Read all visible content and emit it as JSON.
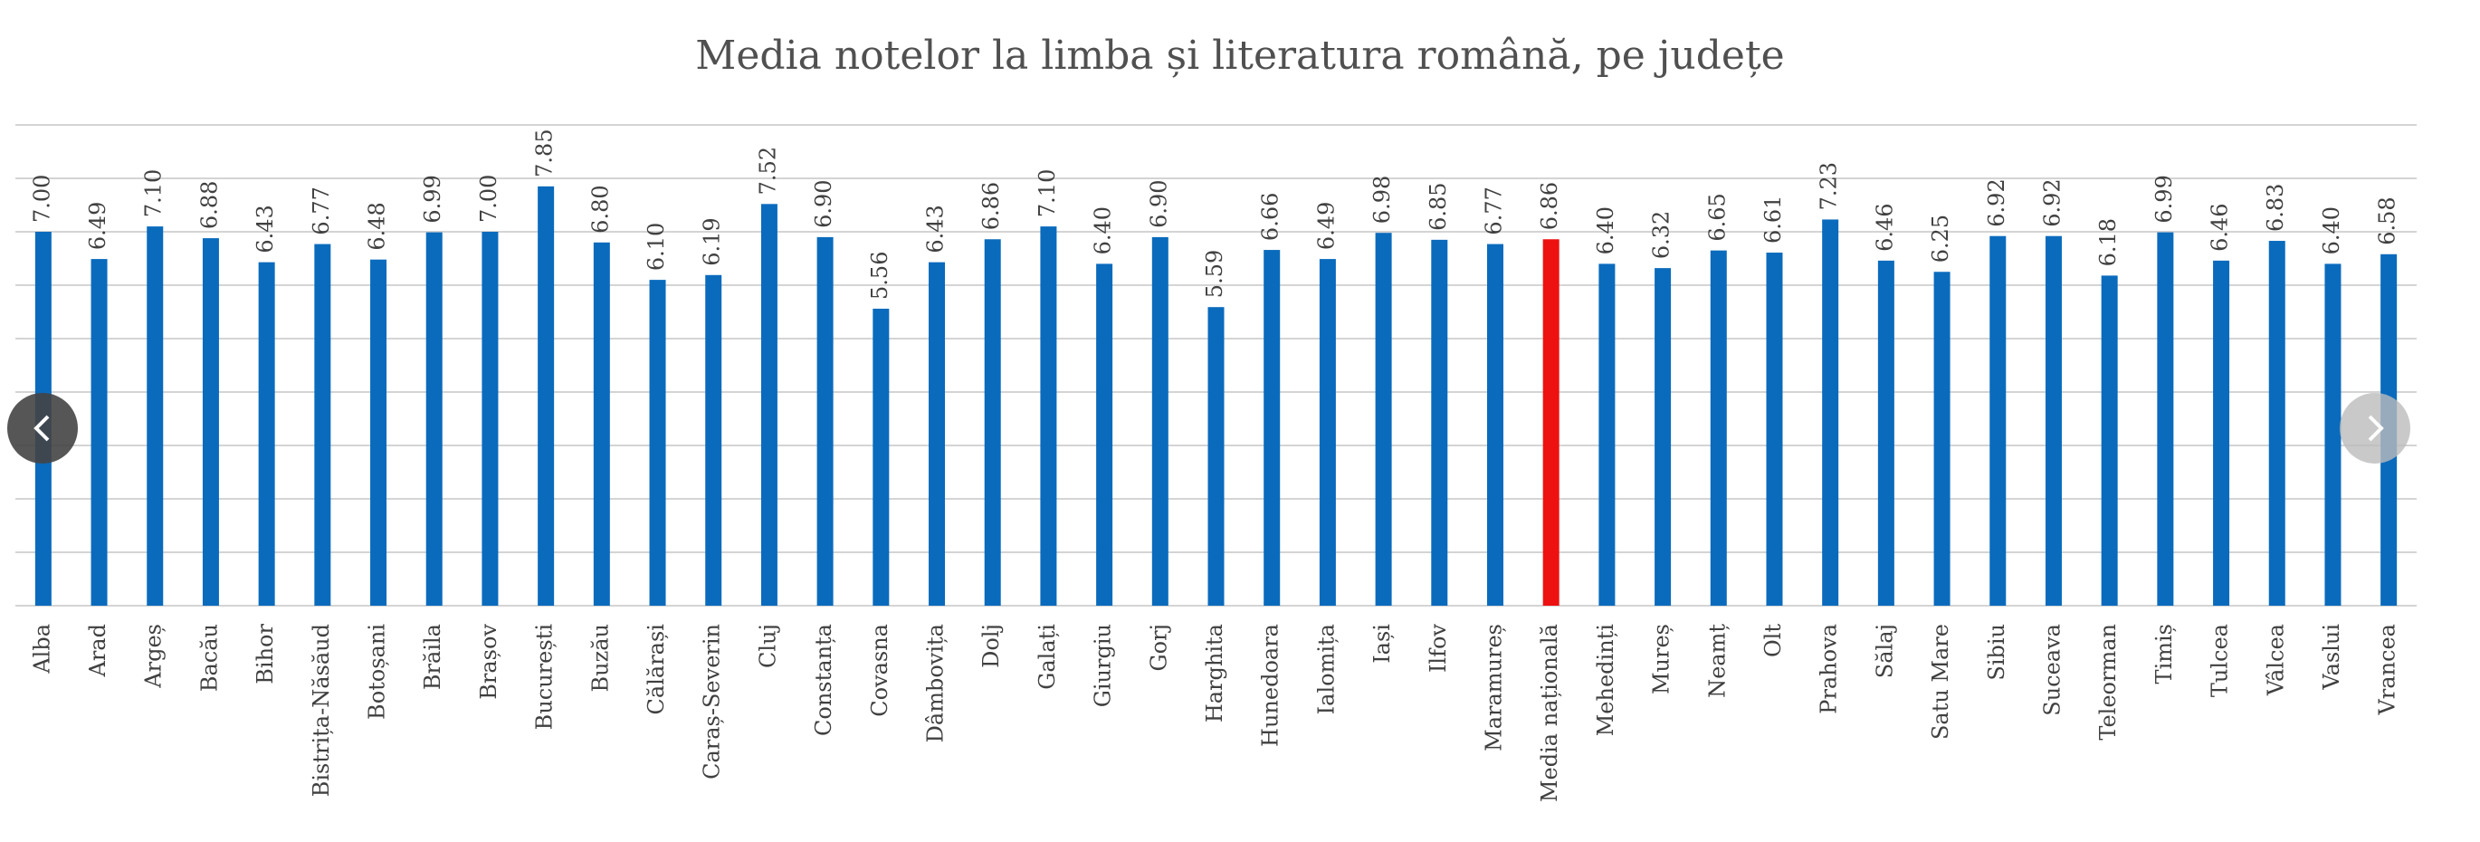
{
  "chart_data": {
    "type": "bar",
    "title": "Media notelor la limba și literatura română, pe județe",
    "categories": [
      "Alba",
      "Arad",
      "Argeș",
      "Bacău",
      "Bihor",
      "Bistrița-Năsăud",
      "Botoșani",
      "Brăila",
      "Brașov",
      "București",
      "Buzău",
      "Călărași",
      "Caraș-Severin",
      "Cluj",
      "Constanța",
      "Covasna",
      "Dâmbovița",
      "Dolj",
      "Galați",
      "Giurgiu",
      "Gorj",
      "Harghita",
      "Hunedoara",
      "Ialomița",
      "Iași",
      "Ilfov",
      "Maramureș",
      "Media națională",
      "Mehedinți",
      "Mureș",
      "Neamț",
      "Olt",
      "Prahova",
      "Sălaj",
      "Satu Mare",
      "Sibiu",
      "Suceava",
      "Teleorman",
      "Timiș",
      "Tulcea",
      "Vâlcea",
      "Vaslui",
      "Vrancea"
    ],
    "values": [
      7.0,
      6.49,
      7.1,
      6.88,
      6.43,
      6.77,
      6.48,
      6.99,
      7.0,
      7.85,
      6.8,
      6.1,
      6.19,
      7.52,
      6.9,
      5.56,
      6.43,
      6.86,
      7.1,
      6.4,
      6.9,
      5.59,
      6.66,
      6.49,
      6.98,
      6.85,
      6.77,
      6.86,
      6.4,
      6.32,
      6.65,
      6.61,
      7.23,
      6.46,
      6.25,
      6.92,
      6.92,
      6.18,
      6.99,
      6.46,
      6.83,
      6.4,
      6.58
    ],
    "value_labels": [
      "7.00",
      "6.49",
      "7.10",
      "6.88",
      "6.43",
      "6.77",
      "6.48",
      "6.99",
      "7.00",
      "7.85",
      "6.80",
      "6.10",
      "6.19",
      "7.52",
      "6.90",
      "5.56",
      "6.43",
      "6.86",
      "7.10",
      "6.40",
      "6.90",
      "5.59",
      "6.66",
      "6.49",
      "6.98",
      "6.85",
      "6.77",
      "6.86",
      "6.40",
      "6.32",
      "6.65",
      "6.61",
      "7.23",
      "6.46",
      "6.25",
      "6.92",
      "6.92",
      "6.18",
      "6.99",
      "6.46",
      "6.83",
      "6.40",
      "6.58"
    ],
    "colors": [
      "#0a6bbd",
      "#0a6bbd",
      "#0a6bbd",
      "#0a6bbd",
      "#0a6bbd",
      "#0a6bbd",
      "#0a6bbd",
      "#0a6bbd",
      "#0a6bbd",
      "#0a6bbd",
      "#0a6bbd",
      "#0a6bbd",
      "#0a6bbd",
      "#0a6bbd",
      "#0a6bbd",
      "#0a6bbd",
      "#0a6bbd",
      "#0a6bbd",
      "#0a6bbd",
      "#0a6bbd",
      "#0a6bbd",
      "#0a6bbd",
      "#0a6bbd",
      "#0a6bbd",
      "#0a6bbd",
      "#0a6bbd",
      "#0a6bbd",
      "#ee1111",
      "#0a6bbd",
      "#0a6bbd",
      "#0a6bbd",
      "#0a6bbd",
      "#0a6bbd",
      "#0a6bbd",
      "#0a6bbd",
      "#0a6bbd",
      "#0a6bbd",
      "#0a6bbd",
      "#0a6bbd",
      "#0a6bbd",
      "#0a6bbd",
      "#0a6bbd",
      "#0a6bbd"
    ],
    "ylim": [
      0,
      9
    ],
    "yticks": [
      0,
      1,
      2,
      3,
      4,
      5,
      6,
      7,
      8,
      9
    ],
    "grid": true
  }
}
